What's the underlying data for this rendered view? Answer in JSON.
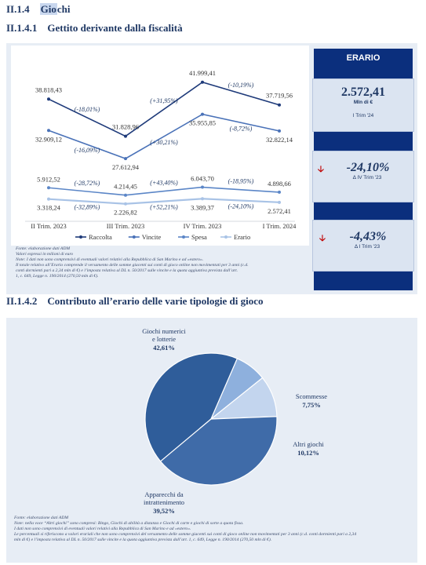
{
  "section": {
    "number": "II.1.4",
    "title_prefix": "Gio",
    "title_suffix": "chi"
  },
  "sub1": {
    "number": "II.1.4.1",
    "title": "Gettito derivante dalla fiscalità"
  },
  "sub2": {
    "number": "II.1.4.2",
    "title": "Contributo all’erario delle varie tipologie di gioco"
  },
  "line_chart": {
    "chart_data": {
      "type": "line",
      "categories": [
        "II Trim. 2023",
        "III Trim. 2023",
        "IV Trim. 2023",
        "I Trim. 2024"
      ],
      "series": [
        {
          "name": "Raccolta",
          "color": "#1f3b7a",
          "values": [
            38818.43,
            31828.96,
            41999.41,
            37719.56
          ],
          "labels": [
            "38.818,43",
            "31.828,96",
            "41.999,41",
            "37.719,56"
          ],
          "changes": [
            "(-18,01%)",
            "(+31,95%)",
            "(-10,19%)"
          ]
        },
        {
          "name": "Vincite",
          "color": "#4a72b8",
          "values": [
            32909.12,
            27612.94,
            35955.85,
            32822.14
          ],
          "labels": [
            "32.909,12",
            "27.612,94",
            "35.955,85",
            "32.822,14"
          ],
          "changes": [
            "(-16,09%)",
            "(+30,21%)",
            "(-8,72%)"
          ]
        },
        {
          "name": "Spesa",
          "color": "#5b86c7",
          "values": [
            5912.52,
            4214.45,
            6043.7,
            4898.66
          ],
          "labels": [
            "5.912,52",
            "4.214,45",
            "6.043,70",
            "4.898,66"
          ],
          "changes": [
            "(-28,72%)",
            "(+43,40%)",
            "(-18,95%)"
          ]
        },
        {
          "name": "Erario",
          "color": "#a9c3e6",
          "values": [
            3318.24,
            2226.82,
            3389.37,
            2572.41
          ],
          "labels": [
            "3.318,24",
            "2.226,82",
            "3.389,37",
            "2.572,41"
          ],
          "changes": [
            "(-32,89%)",
            "(+52,21%)",
            "(-24,10%)"
          ]
        }
      ]
    },
    "notes": [
      "Fonte: elaborazione dati ADM",
      "Valori espressi in milioni di euro",
      "Note: I dati non sono comprensivi di eventuali valori relativi alla Repubblica di San Marino e ad «estero».",
      "Il totale relativo all’Erario comprende il versamento delle somme giacenti sui conti di gioco online non movimentati per 3 anni (c.d.",
      "conti dormienti pari a 2,34 mln di €) e l’imposta relativa al DL n. 50/2017 sulle vincite e la quota aggiuntiva prevista dall’art.",
      "1, c. 649, Legge n. 190/2014 (270,50 mln di €)."
    ]
  },
  "erario_panel": {
    "title": "ERARIO",
    "value": "2.572,41",
    "unit": "Mln di €",
    "period": "I Trim '24",
    "kpi1": {
      "value": "-24,10%",
      "label": "Δ IV Trim '23"
    },
    "kpi2": {
      "value": "-4,43%",
      "label": "Δ I Trim '23"
    }
  },
  "pie_chart": {
    "chart_data": {
      "type": "pie",
      "slices": [
        {
          "label": "Giochi numerici e lotterie",
          "pct_label": "42,61%",
          "value": 42.61,
          "color": "#2f5d9a"
        },
        {
          "label": "Scommesse",
          "pct_label": "7,75%",
          "value": 7.75,
          "color": "#8eb0dd"
        },
        {
          "label": "Altri giochi",
          "pct_label": "10,12%",
          "value": 10.12,
          "color": "#c3d5ee"
        },
        {
          "label": "Apparecchi da intrattenimento",
          "pct_label": "39,52%",
          "value": 39.52,
          "color": "#3f6ba8"
        }
      ]
    },
    "notes": [
      "Fonte: elaborazione dati ADM",
      "Note: nella voce “Altri giochi” sono compresi: Bingo, Giochi di abilità a distanza e Giochi di carte e giochi di sorte a quota fissa.",
      " I dati non sono comprensivi di eventuali valori relativi alla Repubblica di San Marino e ad «estero».",
      "Le percentuali si riferiscono a valori erariali che non sono comprensivi del versamento delle somme giacenti sui conti di gioco online non movimentati per 3 anni (c.d. conti dormienti pari a 2,34",
      "mln di €) e l’imposta relativa al DL n. 50/2017 sulle vincite e la quota aggiuntiva prevista dall’art. 1, c. 649, Legge n. 190/2014 (270,50 mln di €)."
    ]
  }
}
